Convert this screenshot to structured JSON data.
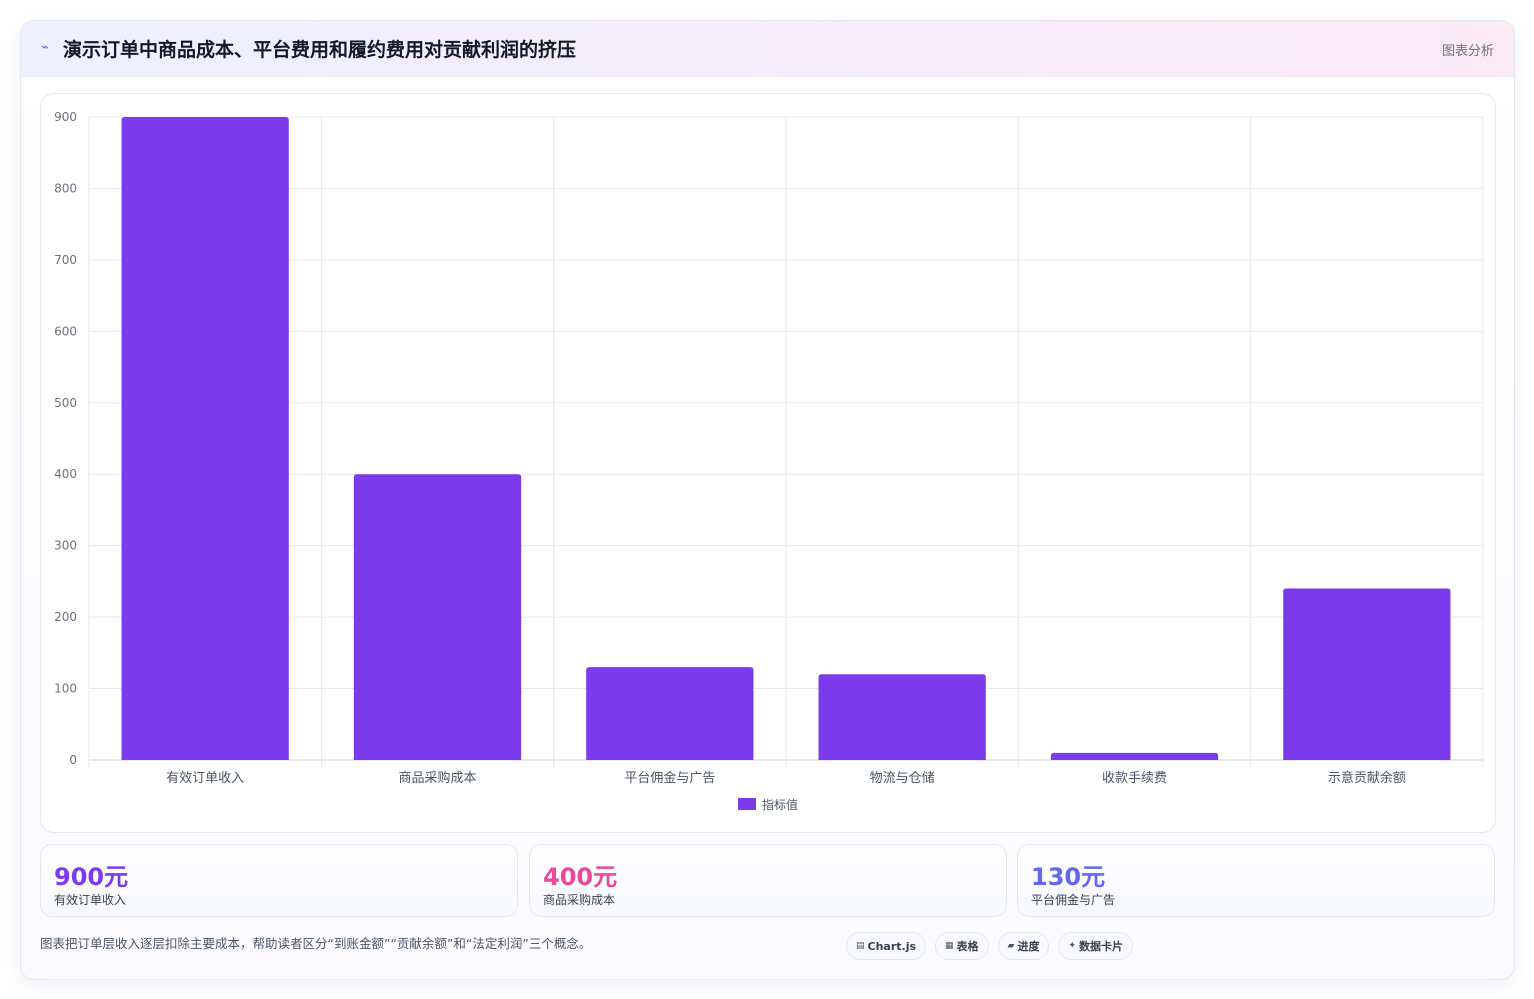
{
  "header": {
    "icon": "spark-icon",
    "title": "演示订单中商品成本、平台费用和履约费用对贡献利润的挤压",
    "tag": "图表分析"
  },
  "chart_data": {
    "type": "bar",
    "categories": [
      "有效订单收入",
      "商品采购成本",
      "平台佣金与广告",
      "物流与仓储",
      "收款手续费",
      "示意贡献余额"
    ],
    "series": [
      {
        "name": "指标值",
        "values": [
          900,
          400,
          130,
          120,
          10,
          240
        ]
      }
    ],
    "ylim": [
      0,
      900
    ],
    "yticks": [
      0,
      100,
      200,
      300,
      400,
      500,
      600,
      700,
      800,
      900
    ],
    "grid": true,
    "legend_position": "bottom",
    "bar_color": "#7c3aed",
    "title": "",
    "xlabel": "",
    "ylabel": ""
  },
  "stats": [
    {
      "value": "900元",
      "label": "有效订单收入",
      "color": "#7c3aed"
    },
    {
      "value": "400元",
      "label": "商品采购成本",
      "color": "#ec4899"
    },
    {
      "value": "130元",
      "label": "平台佣金与广告",
      "color": "#6366f1"
    }
  ],
  "footnote": "图表把订单层收入逐层扣除主要成本，帮助读者区分“到账金额”“贡献余额”和“法定利润”三个概念。",
  "pills": [
    {
      "icon": "chart-icon",
      "glyph": "▤",
      "label": "Chart.js"
    },
    {
      "icon": "table-icon",
      "glyph": "▦",
      "label": "表格"
    },
    {
      "icon": "progress-icon",
      "glyph": "▰",
      "label": "进度"
    },
    {
      "icon": "card-icon",
      "glyph": "✦",
      "label": "数据卡片"
    }
  ]
}
